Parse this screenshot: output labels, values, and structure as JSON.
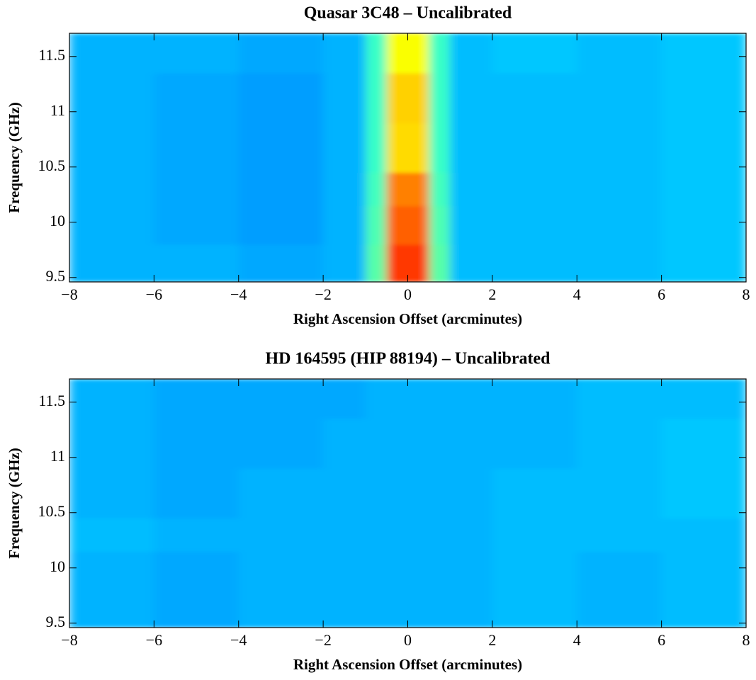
{
  "chart_data": [
    {
      "type": "heatmap",
      "title": "Quasar 3C48 – Uncalibrated",
      "x_label": "Right Ascension Offset (arcminutes)",
      "y_label": "Frequency (GHz)",
      "colormap": "jet",
      "xbins": [
        -8,
        -6,
        -4,
        -2,
        -1,
        -0.5,
        0.5,
        1,
        2,
        4,
        6,
        8
      ],
      "ybins": [
        9.46,
        9.8,
        10.15,
        10.45,
        10.9,
        11.35,
        11.71
      ],
      "values": [
        [
          0.3,
          0.3,
          0.29,
          0.3,
          0.46,
          0.82,
          0.46,
          0.31,
          0.31,
          0.31,
          0.32
        ],
        [
          0.3,
          0.29,
          0.28,
          0.3,
          0.45,
          0.78,
          0.45,
          0.31,
          0.31,
          0.31,
          0.32
        ],
        [
          0.3,
          0.29,
          0.28,
          0.3,
          0.44,
          0.75,
          0.44,
          0.31,
          0.31,
          0.31,
          0.32
        ],
        [
          0.3,
          0.29,
          0.28,
          0.3,
          0.43,
          0.66,
          0.43,
          0.31,
          0.31,
          0.31,
          0.32
        ],
        [
          0.3,
          0.29,
          0.28,
          0.3,
          0.43,
          0.67,
          0.43,
          0.31,
          0.31,
          0.31,
          0.32
        ],
        [
          0.3,
          0.3,
          0.29,
          0.3,
          0.43,
          0.62,
          0.43,
          0.31,
          0.32,
          0.31,
          0.32
        ]
      ],
      "xlim": [
        -8,
        8
      ],
      "ylim": [
        9.46,
        11.71
      ],
      "xticks": [
        {
          "value": -8,
          "label": "−8"
        },
        {
          "value": -6,
          "label": "−6"
        },
        {
          "value": -4,
          "label": "−4"
        },
        {
          "value": -2,
          "label": "−2"
        },
        0,
        2,
        4,
        6,
        8
      ],
      "yticks": [
        9.5,
        10,
        10.5,
        11,
        11.5
      ]
    },
    {
      "type": "heatmap",
      "title": "HD 164595 (HIP 88194) – Uncalibrated",
      "x_label": "Right Ascension Offset (arcminutes)",
      "y_label": "Frequency (GHz)",
      "colormap": "jet",
      "xbins": [
        -8,
        -6,
        -4,
        -2,
        -1,
        -0.5,
        0.5,
        1,
        2,
        4,
        6,
        8
      ],
      "ybins": [
        9.46,
        9.8,
        10.15,
        10.45,
        10.9,
        11.35,
        11.71
      ],
      "values": [
        [
          0.3,
          0.29,
          0.3,
          0.3,
          0.3,
          0.3,
          0.3,
          0.3,
          0.31,
          0.3,
          0.31
        ],
        [
          0.3,
          0.29,
          0.3,
          0.3,
          0.3,
          0.3,
          0.3,
          0.3,
          0.31,
          0.3,
          0.31
        ],
        [
          0.31,
          0.3,
          0.3,
          0.3,
          0.3,
          0.3,
          0.3,
          0.3,
          0.31,
          0.31,
          0.31
        ],
        [
          0.3,
          0.29,
          0.3,
          0.3,
          0.3,
          0.3,
          0.3,
          0.3,
          0.31,
          0.31,
          0.32
        ],
        [
          0.3,
          0.29,
          0.29,
          0.3,
          0.3,
          0.3,
          0.3,
          0.3,
          0.3,
          0.31,
          0.32
        ],
        [
          0.3,
          0.29,
          0.29,
          0.29,
          0.3,
          0.3,
          0.3,
          0.3,
          0.3,
          0.31,
          0.31
        ]
      ],
      "xlim": [
        -8,
        8
      ],
      "ylim": [
        9.46,
        11.71
      ],
      "xticks": [
        {
          "value": -8,
          "label": "−8"
        },
        {
          "value": -6,
          "label": "−6"
        },
        {
          "value": -4,
          "label": "−4"
        },
        {
          "value": -2,
          "label": "−2"
        },
        0,
        2,
        4,
        6,
        8
      ],
      "yticks": [
        9.5,
        10,
        10.5,
        11,
        11.5
      ]
    }
  ]
}
